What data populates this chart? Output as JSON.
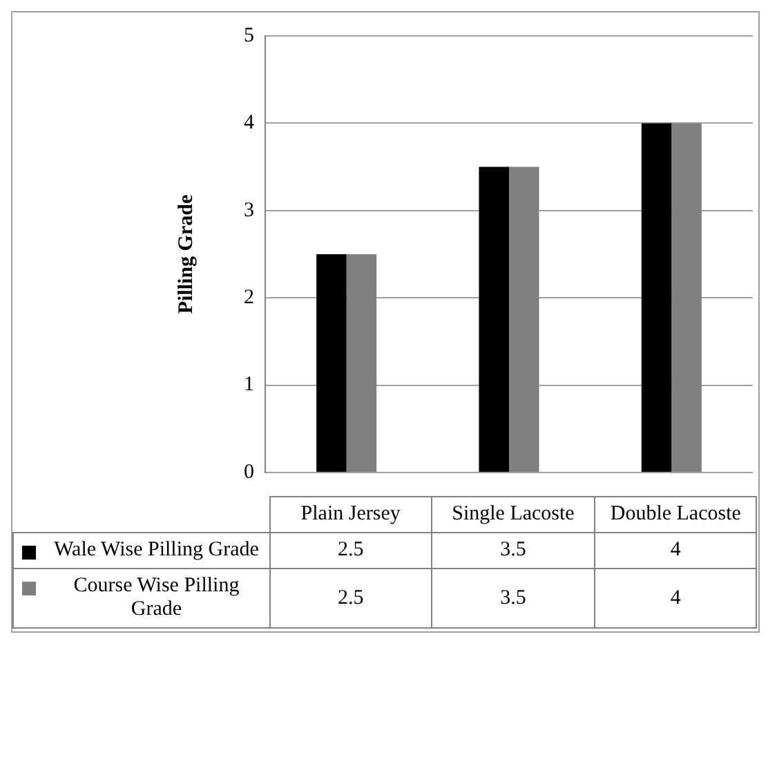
{
  "chart_data": {
    "type": "bar",
    "ylabel": "Pilling Grade",
    "categories": [
      "Plain Jersey",
      "Single Lacoste",
      "Double Lacoste"
    ],
    "series": [
      {
        "name": "Wale Wise Pilling Grade",
        "color": "#000000",
        "values": [
          2.5,
          3.5,
          4
        ]
      },
      {
        "name": "Course Wise Pilling Grade",
        "color": "#808080",
        "values": [
          2.5,
          3.5,
          4
        ]
      }
    ],
    "ylim": [
      0,
      5
    ],
    "yticks": [
      0,
      1,
      2,
      3,
      4,
      5
    ],
    "grid": "y",
    "legend": "bottom",
    "data_labels": true
  }
}
